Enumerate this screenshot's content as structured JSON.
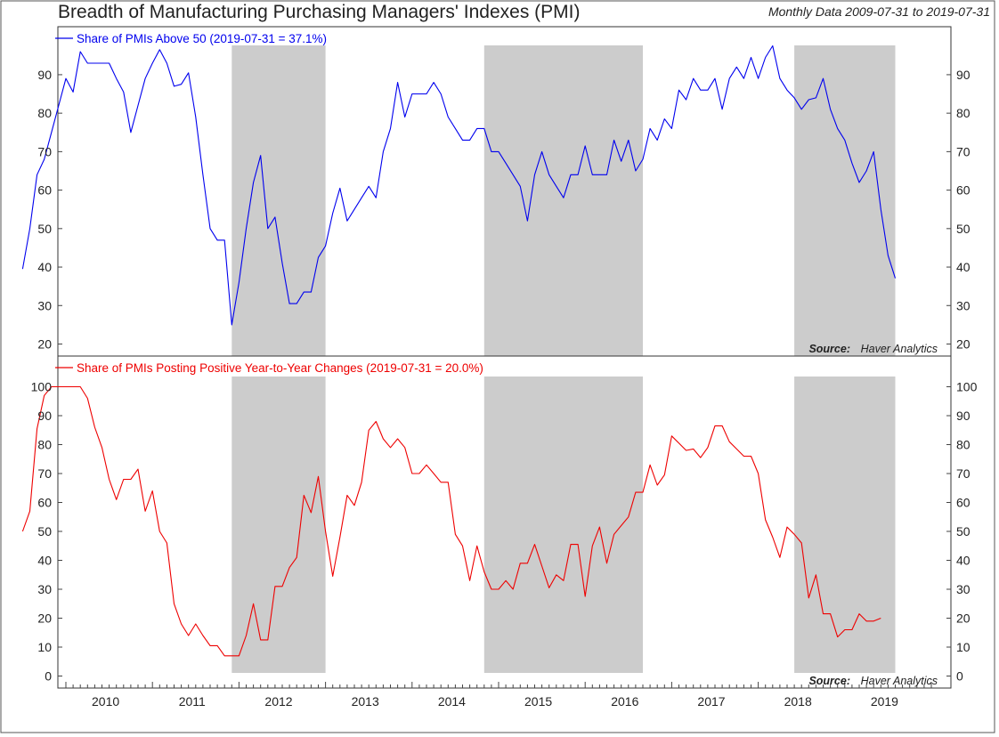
{
  "header": {
    "title": "Breadth of Manufacturing Purchasing Managers' Indexes (PMI)",
    "subtitle": "Monthly Data 2009-07-31 to 2019-07-31"
  },
  "source": {
    "label": "Source:",
    "name": "Haver Analytics"
  },
  "chart_data": [
    {
      "type": "line",
      "legend_position": "top-left",
      "grid": false,
      "ylim": [
        17,
        100
      ],
      "y_ticks": [
        20,
        30,
        40,
        50,
        60,
        70,
        80,
        90
      ],
      "series": [
        {
          "name": "Share of PMIs Above 50 (2019-07-31 = 37.1%)",
          "color": "#0000ee",
          "start": "2009-07",
          "values": [
            39.5,
            50,
            64,
            68,
            75,
            82,
            89,
            85.5,
            96,
            93,
            93,
            93,
            93,
            89,
            85.5,
            75,
            82,
            89,
            93,
            96.5,
            93,
            87,
            87.5,
            90.5,
            79,
            64,
            50,
            47,
            47,
            25,
            36,
            50,
            62,
            69,
            50,
            53,
            41,
            30.5,
            30.5,
            33.5,
            33.5,
            42.5,
            45.5,
            54,
            60.5,
            52,
            55,
            58,
            61,
            58,
            70,
            76,
            88,
            79,
            85,
            85,
            85,
            88,
            85,
            79,
            76,
            73,
            73,
            76,
            76,
            70,
            70,
            67,
            64,
            61,
            52,
            64,
            70,
            64,
            61,
            58,
            64,
            64,
            71.5,
            64,
            64,
            64,
            73,
            67.5,
            73,
            65,
            68,
            76,
            73,
            78.5,
            76,
            86,
            83.5,
            89,
            86,
            86,
            89,
            81,
            89,
            92,
            89,
            94.5,
            89,
            94.5,
            97.5,
            89,
            86,
            84,
            81,
            83.5,
            84,
            89,
            81,
            76,
            73,
            67,
            62,
            65,
            70,
            55,
            43,
            37.1
          ]
        }
      ],
      "recessions": [
        [
          "2011-12",
          "2013-01"
        ],
        [
          "2014-11",
          "2016-09"
        ],
        [
          "2018-06",
          "2019-08"
        ]
      ],
      "source": "Source: Haver Analytics"
    },
    {
      "type": "line",
      "legend_position": "top-left",
      "grid": false,
      "ylim": [
        -2,
        103
      ],
      "y_ticks": [
        0,
        10,
        20,
        30,
        40,
        50,
        60,
        70,
        80,
        90,
        100
      ],
      "x_ticks": [
        "2010",
        "2011",
        "2012",
        "2013",
        "2014",
        "2015",
        "2016",
        "2017",
        "2018",
        "2019"
      ],
      "series": [
        {
          "name": "Share of PMIs Posting Positive Year-to-Year Changes (2019-07-31 = 20.0%)",
          "color": "#ee0000",
          "start": "2009-07",
          "values": [
            50,
            57,
            85.5,
            97,
            100,
            100,
            100,
            100,
            100,
            96,
            86,
            79,
            68,
            61,
            68,
            68,
            71.5,
            57,
            64,
            50,
            46,
            25,
            18,
            14,
            18,
            14,
            10.5,
            10.5,
            7,
            7,
            7,
            14,
            25,
            12.5,
            12.5,
            31,
            31,
            37.5,
            41,
            62.5,
            56.5,
            69,
            50,
            34.5,
            48,
            62.5,
            59,
            67,
            85,
            88,
            82,
            79,
            82,
            79,
            70,
            70,
            73,
            70,
            67,
            67,
            49,
            45,
            33,
            45,
            36,
            30,
            30,
            33,
            30,
            39,
            39,
            45.5,
            38,
            30.5,
            35,
            33,
            45.5,
            45.5,
            27.5,
            45,
            51.5,
            39,
            49,
            52,
            55,
            63.5,
            63.5,
            73,
            66,
            69.5,
            83,
            80.5,
            78,
            78.5,
            75.5,
            79,
            86.5,
            86.5,
            81,
            78.5,
            76,
            76,
            70,
            54,
            48,
            41,
            51.5,
            49,
            46,
            27,
            35,
            21.5,
            21.5,
            13.5,
            16,
            16,
            21.5,
            19,
            19,
            20.0
          ]
        }
      ],
      "recessions": [
        [
          "2011-12",
          "2013-01"
        ],
        [
          "2014-11",
          "2016-09"
        ],
        [
          "2018-06",
          "2019-08"
        ]
      ],
      "source": "Source: Haver Analytics"
    }
  ]
}
